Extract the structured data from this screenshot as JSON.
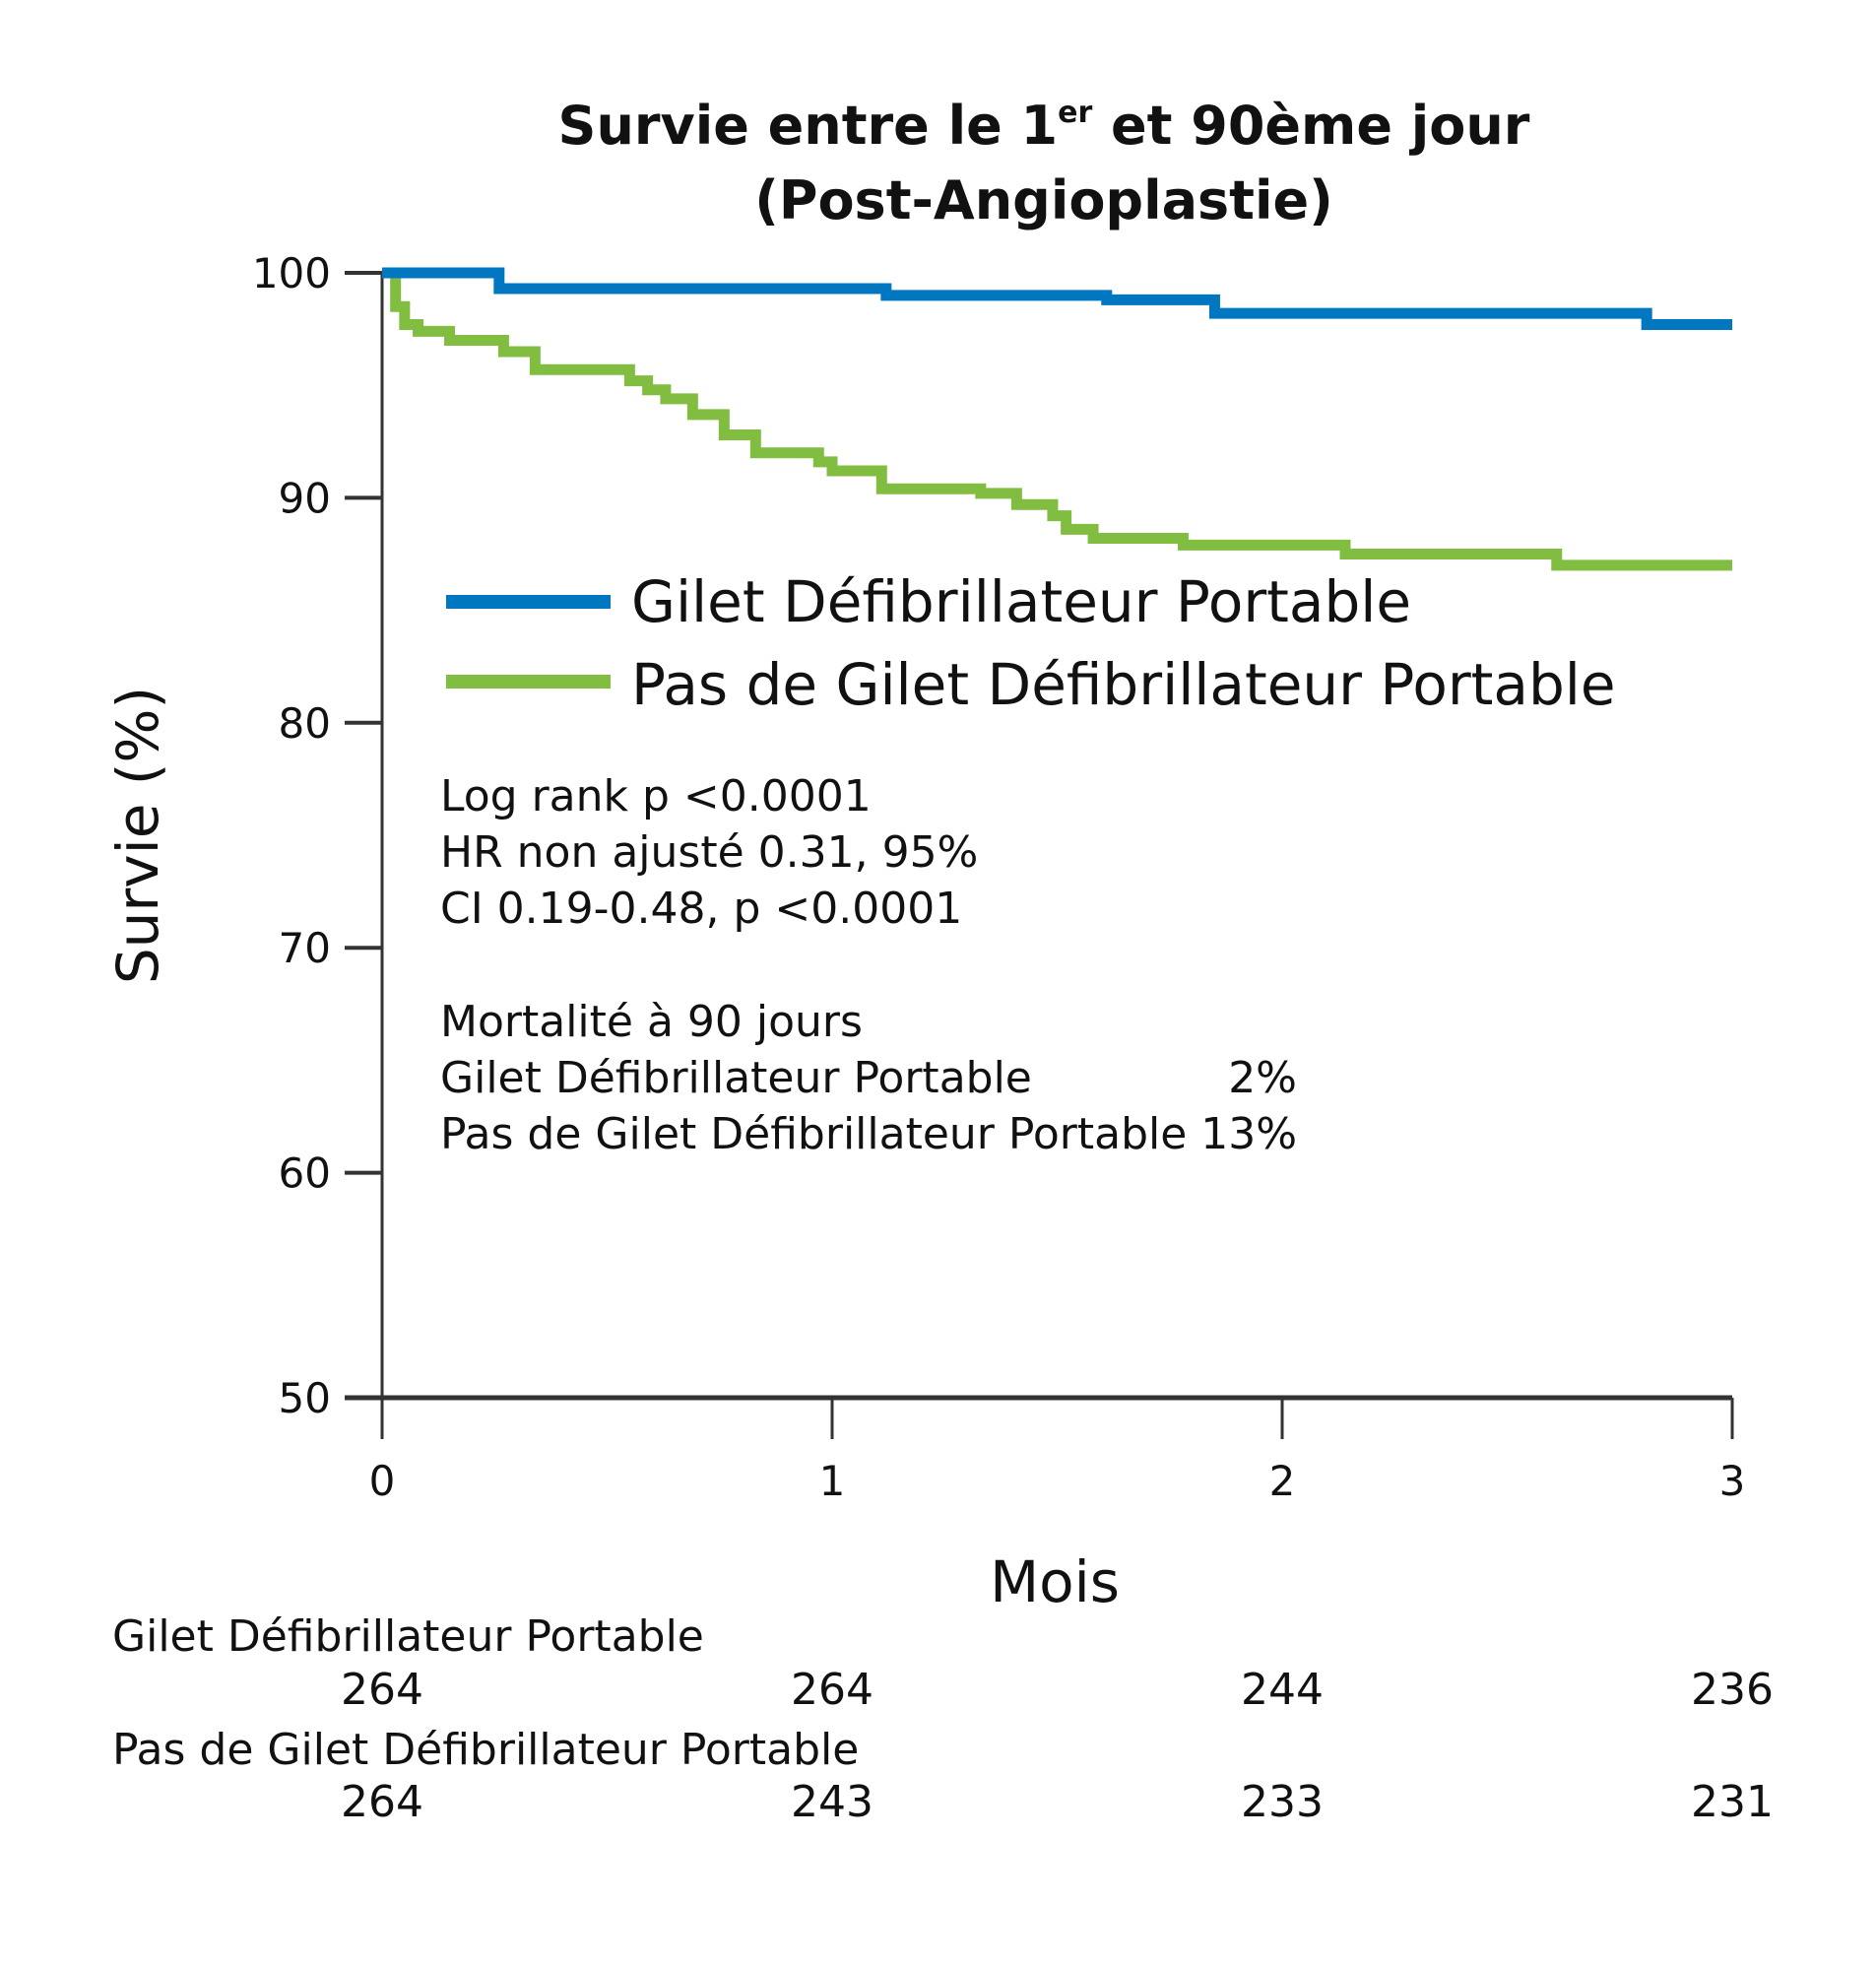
{
  "chart_data": {
    "type": "line",
    "step": true,
    "title_line1": "Survie entre le 1",
    "title_sup": "er",
    "title_line1_rest": " et 90ème jour",
    "title_line2": "(Post-Angioplastie)",
    "xlabel": "Mois",
    "ylabel": "Survie (%)",
    "xlim": [
      0,
      3
    ],
    "ylim": [
      50,
      100
    ],
    "xticks": [
      "0",
      "1",
      "2",
      "3"
    ],
    "yticks": [
      "50",
      "60",
      "70",
      "80",
      "90",
      "100"
    ],
    "grid": false,
    "legend_position": "upper-center",
    "series": [
      {
        "name": "Gilet Défibrillateur Portable",
        "color": "#0077c0",
        "x": [
          0,
          0.26,
          1.12,
          1.61,
          1.85,
          2.81,
          3.0
        ],
        "y": [
          100,
          99.3,
          99.0,
          98.8,
          98.2,
          97.7,
          97.7
        ]
      },
      {
        "name": "Pas de Gilet Défibrillateur Portable",
        "color": "#80bd41",
        "x": [
          0,
          0.03,
          0.05,
          0.08,
          0.15,
          0.27,
          0.34,
          0.55,
          0.59,
          0.63,
          0.69,
          0.76,
          0.83,
          0.97,
          1.0,
          1.11,
          1.33,
          1.41,
          1.49,
          1.52,
          1.58,
          1.78,
          2.14,
          2.61,
          3.0
        ],
        "y": [
          100,
          98.5,
          97.7,
          97.4,
          97.0,
          96.5,
          95.7,
          95.2,
          94.8,
          94.4,
          93.7,
          92.8,
          92.0,
          91.6,
          91.2,
          90.4,
          90.2,
          89.7,
          89.2,
          88.6,
          88.2,
          87.9,
          87.5,
          87.0,
          87.0
        ]
      }
    ],
    "annotations": {
      "stats": [
        "Log rank p <0.0001",
        "HR non ajusté 0.31, 95%",
        "CI 0.19-0.48, p <0.0001"
      ],
      "mortality_title": "Mortalité à 90 jours",
      "mortality": [
        {
          "label": "Gilet Défibrillateur Portable",
          "value": "2%"
        },
        {
          "label": "Pas de Gilet Défibrillateur Portable",
          "value": "13%"
        }
      ]
    },
    "risk_table": [
      {
        "label": "Gilet Défibrillateur Portable",
        "values": [
          "264",
          "264",
          "244",
          "236"
        ]
      },
      {
        "label": "Pas de Gilet Défibrillateur Portable",
        "values": [
          "264",
          "243",
          "233",
          "231"
        ]
      }
    ]
  }
}
